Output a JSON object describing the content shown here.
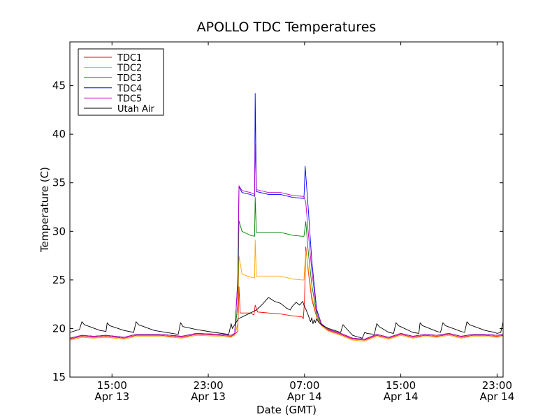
{
  "chart_data": {
    "type": "line",
    "title": "APOLLO TDC Temperatures",
    "xlabel": "Date (GMT)",
    "ylabel": "Temperature (C)",
    "ylim": [
      15,
      49.5
    ],
    "xlim": [
      11.5,
      47.5
    ],
    "x_unit": "hours since Apr 13 00:00 GMT",
    "yticks": [
      15,
      20,
      25,
      30,
      35,
      40,
      45
    ],
    "xticks": [
      {
        "hour": 15,
        "time": "15:00",
        "date": "Apr 13"
      },
      {
        "hour": 23,
        "time": "23:00",
        "date": "Apr 13"
      },
      {
        "hour": 31,
        "time": "07:00",
        "date": "Apr 14"
      },
      {
        "hour": 39,
        "time": "15:00",
        "date": "Apr 14"
      },
      {
        "hour": 47,
        "time": "23:00",
        "date": "Apr 14"
      }
    ],
    "legend": "upper-left",
    "series": [
      {
        "name": "TDC1",
        "color": "#ff0000",
        "points": [
          [
            11.5,
            18.9
          ],
          [
            12.5,
            19.2
          ],
          [
            13.5,
            19.1
          ],
          [
            14.5,
            19.2
          ],
          [
            16,
            19.0
          ],
          [
            17,
            19.3
          ],
          [
            19,
            19.3
          ],
          [
            20.8,
            19.1
          ],
          [
            22,
            19.4
          ],
          [
            24,
            19.3
          ],
          [
            24.9,
            19.2
          ],
          [
            25.2,
            19.4
          ],
          [
            25.45,
            19.7
          ],
          [
            25.55,
            24.3
          ],
          [
            25.65,
            21.6
          ],
          [
            26.5,
            21.6
          ],
          [
            26.8,
            21.4
          ],
          [
            26.9,
            22.4
          ],
          [
            27.1,
            21.7
          ],
          [
            28,
            21.6
          ],
          [
            29,
            21.5
          ],
          [
            30,
            21.3
          ],
          [
            30.8,
            21.2
          ],
          [
            30.9,
            21.0
          ],
          [
            31.0,
            22.9
          ],
          [
            31.1,
            28.4
          ],
          [
            31.3,
            26.0
          ],
          [
            31.6,
            23.0
          ],
          [
            32.0,
            21.2
          ],
          [
            32.4,
            20.3
          ],
          [
            33,
            19.8
          ],
          [
            34,
            19.4
          ],
          [
            35,
            18.9
          ],
          [
            36,
            18.8
          ],
          [
            37,
            19.3
          ],
          [
            38,
            19.0
          ],
          [
            39,
            19.4
          ],
          [
            40,
            19.1
          ],
          [
            41,
            19.3
          ],
          [
            42,
            19.2
          ],
          [
            43,
            19.4
          ],
          [
            44,
            19.1
          ],
          [
            45,
            19.3
          ],
          [
            46,
            19.3
          ],
          [
            47,
            19.2
          ],
          [
            47.5,
            19.3
          ]
        ]
      },
      {
        "name": "TDC2",
        "color": "#ffa500",
        "points": [
          [
            11.5,
            18.8
          ],
          [
            12.5,
            19.1
          ],
          [
            13.5,
            19.0
          ],
          [
            14.5,
            19.1
          ],
          [
            16,
            18.9
          ],
          [
            17,
            19.2
          ],
          [
            19,
            19.2
          ],
          [
            20.8,
            19.0
          ],
          [
            22,
            19.3
          ],
          [
            24,
            19.2
          ],
          [
            24.9,
            19.1
          ],
          [
            25.2,
            19.3
          ],
          [
            25.45,
            20.5
          ],
          [
            25.55,
            27.5
          ],
          [
            25.8,
            25.6
          ],
          [
            26.5,
            25.3
          ],
          [
            26.85,
            25.2
          ],
          [
            26.9,
            29.1
          ],
          [
            27.0,
            25.4
          ],
          [
            28,
            25.4
          ],
          [
            29,
            25.4
          ],
          [
            30,
            25.1
          ],
          [
            30.8,
            25.0
          ],
          [
            30.95,
            25.0
          ],
          [
            31.1,
            28.0
          ],
          [
            31.3,
            26.3
          ],
          [
            31.6,
            23.4
          ],
          [
            32.0,
            21.3
          ],
          [
            32.4,
            20.3
          ],
          [
            33,
            19.7
          ],
          [
            34,
            19.3
          ],
          [
            35,
            18.8
          ],
          [
            36,
            18.7
          ],
          [
            37,
            19.2
          ],
          [
            38,
            18.9
          ],
          [
            39,
            19.3
          ],
          [
            40,
            19.0
          ],
          [
            41,
            19.2
          ],
          [
            42,
            19.1
          ],
          [
            43,
            19.3
          ],
          [
            44,
            19.0
          ],
          [
            45,
            19.2
          ],
          [
            46,
            19.2
          ],
          [
            47,
            19.1
          ],
          [
            47.5,
            19.2
          ]
        ]
      },
      {
        "name": "TDC3",
        "color": "#008000",
        "points": [
          [
            11.5,
            19.0
          ],
          [
            12.5,
            19.3
          ],
          [
            13.5,
            19.2
          ],
          [
            14.5,
            19.3
          ],
          [
            16,
            19.1
          ],
          [
            17,
            19.4
          ],
          [
            19,
            19.4
          ],
          [
            20.8,
            19.2
          ],
          [
            22,
            19.5
          ],
          [
            24,
            19.4
          ],
          [
            24.9,
            19.3
          ],
          [
            25.2,
            19.5
          ],
          [
            25.45,
            22.5
          ],
          [
            25.55,
            31.1
          ],
          [
            25.8,
            30.0
          ],
          [
            26.5,
            29.6
          ],
          [
            26.85,
            29.5
          ],
          [
            26.9,
            33.5
          ],
          [
            27.0,
            29.9
          ],
          [
            28,
            29.9
          ],
          [
            29,
            29.9
          ],
          [
            30,
            29.6
          ],
          [
            30.8,
            29.5
          ],
          [
            30.95,
            29.5
          ],
          [
            31.1,
            31.0
          ],
          [
            31.3,
            28.0
          ],
          [
            31.6,
            24.5
          ],
          [
            32.0,
            21.5
          ],
          [
            32.4,
            20.4
          ],
          [
            33,
            19.9
          ],
          [
            34,
            19.5
          ],
          [
            35,
            19.0
          ],
          [
            36,
            18.9
          ],
          [
            37,
            19.4
          ],
          [
            38,
            19.1
          ],
          [
            39,
            19.5
          ],
          [
            40,
            19.2
          ],
          [
            41,
            19.4
          ],
          [
            42,
            19.3
          ],
          [
            43,
            19.5
          ],
          [
            44,
            19.2
          ],
          [
            45,
            19.4
          ],
          [
            46,
            19.4
          ],
          [
            47,
            19.3
          ],
          [
            47.5,
            19.4
          ]
        ]
      },
      {
        "name": "TDC4",
        "color": "#0000ff",
        "points": [
          [
            11.5,
            19.0
          ],
          [
            12.5,
            19.3
          ],
          [
            13.5,
            19.2
          ],
          [
            14.5,
            19.3
          ],
          [
            16,
            19.1
          ],
          [
            17,
            19.4
          ],
          [
            19,
            19.4
          ],
          [
            20.8,
            19.2
          ],
          [
            22,
            19.5
          ],
          [
            24,
            19.4
          ],
          [
            24.9,
            19.3
          ],
          [
            25.2,
            19.5
          ],
          [
            25.45,
            25.0
          ],
          [
            25.55,
            34.6
          ],
          [
            25.8,
            34.0
          ],
          [
            26.5,
            33.8
          ],
          [
            26.85,
            33.6
          ],
          [
            26.9,
            44.2
          ],
          [
            27.0,
            34.1
          ],
          [
            28,
            33.8
          ],
          [
            29,
            33.8
          ],
          [
            30,
            33.5
          ],
          [
            30.8,
            33.4
          ],
          [
            30.95,
            33.4
          ],
          [
            31.05,
            36.7
          ],
          [
            31.3,
            32.5
          ],
          [
            31.6,
            27.0
          ],
          [
            32.0,
            22.0
          ],
          [
            32.4,
            20.5
          ],
          [
            33,
            19.9
          ],
          [
            34,
            19.5
          ],
          [
            35,
            19.0
          ],
          [
            36,
            18.9
          ],
          [
            37,
            19.4
          ],
          [
            38,
            19.1
          ],
          [
            39,
            19.5
          ],
          [
            40,
            19.2
          ],
          [
            41,
            19.4
          ],
          [
            42,
            19.3
          ],
          [
            43,
            19.5
          ],
          [
            44,
            19.2
          ],
          [
            45,
            19.4
          ],
          [
            46,
            19.4
          ],
          [
            47,
            19.3
          ],
          [
            47.5,
            19.4
          ]
        ]
      },
      {
        "name": "TDC5",
        "color": "#bf00bf",
        "points": [
          [
            11.5,
            19.0
          ],
          [
            12.5,
            19.3
          ],
          [
            13.5,
            19.2
          ],
          [
            14.5,
            19.3
          ],
          [
            16,
            19.1
          ],
          [
            17,
            19.4
          ],
          [
            19,
            19.4
          ],
          [
            20.8,
            19.2
          ],
          [
            22,
            19.5
          ],
          [
            24,
            19.4
          ],
          [
            24.9,
            19.3
          ],
          [
            25.2,
            19.5
          ],
          [
            25.45,
            25.0
          ],
          [
            25.55,
            34.7
          ],
          [
            25.8,
            34.2
          ],
          [
            26.5,
            34.0
          ],
          [
            26.85,
            33.8
          ],
          [
            26.9,
            39.0
          ],
          [
            27.0,
            34.3
          ],
          [
            28,
            34.0
          ],
          [
            29,
            34.0
          ],
          [
            30,
            33.7
          ],
          [
            30.8,
            33.6
          ],
          [
            30.95,
            33.6
          ],
          [
            31.1,
            33.0
          ],
          [
            31.3,
            30.0
          ],
          [
            31.6,
            26.0
          ],
          [
            32.0,
            21.8
          ],
          [
            32.4,
            20.5
          ],
          [
            33,
            19.9
          ],
          [
            34,
            19.5
          ],
          [
            35,
            19.0
          ],
          [
            36,
            18.9
          ],
          [
            37,
            19.4
          ],
          [
            38,
            19.1
          ],
          [
            39,
            19.5
          ],
          [
            40,
            19.2
          ],
          [
            41,
            19.4
          ],
          [
            42,
            19.3
          ],
          [
            43,
            19.5
          ],
          [
            44,
            19.2
          ],
          [
            45,
            19.4
          ],
          [
            46,
            19.4
          ],
          [
            47,
            19.3
          ],
          [
            47.5,
            19.4
          ]
        ]
      },
      {
        "name": "Utah Air",
        "color": "#000000",
        "points": [
          [
            11.5,
            19.6
          ],
          [
            12.3,
            19.9
          ],
          [
            12.5,
            20.7
          ],
          [
            12.7,
            20.4
          ],
          [
            14.0,
            19.8
          ],
          [
            14.5,
            19.7
          ],
          [
            14.6,
            20.6
          ],
          [
            14.8,
            20.3
          ],
          [
            16.0,
            19.8
          ],
          [
            16.8,
            19.6
          ],
          [
            17.0,
            20.7
          ],
          [
            17.2,
            20.4
          ],
          [
            18.5,
            19.8
          ],
          [
            20.0,
            19.5
          ],
          [
            20.5,
            19.4
          ],
          [
            20.7,
            20.6
          ],
          [
            20.9,
            20.2
          ],
          [
            22.0,
            19.9
          ],
          [
            23.5,
            19.6
          ],
          [
            24.7,
            19.4
          ],
          [
            24.9,
            20.5
          ],
          [
            25.0,
            20.0
          ],
          [
            25.3,
            20.6
          ],
          [
            25.5,
            21.0
          ],
          [
            26.0,
            21.3
          ],
          [
            26.5,
            21.6
          ],
          [
            27.0,
            21.9
          ],
          [
            27.5,
            22.5
          ],
          [
            28.0,
            23.2
          ],
          [
            28.5,
            22.8
          ],
          [
            29.0,
            22.6
          ],
          [
            29.5,
            22.1
          ],
          [
            29.8,
            21.9
          ],
          [
            30.0,
            22.3
          ],
          [
            30.3,
            22.7
          ],
          [
            30.6,
            22.4
          ],
          [
            30.85,
            22.8
          ],
          [
            30.95,
            22.4
          ],
          [
            31.1,
            22.0
          ],
          [
            31.3,
            21.4
          ],
          [
            31.5,
            20.7
          ],
          [
            31.6,
            21.1
          ],
          [
            31.7,
            20.5
          ],
          [
            31.8,
            20.9
          ],
          [
            31.9,
            20.6
          ],
          [
            32.0,
            21.0
          ],
          [
            32.2,
            20.6
          ],
          [
            32.5,
            20.3
          ],
          [
            33.0,
            20.0
          ],
          [
            33.5,
            19.8
          ],
          [
            34.0,
            19.6
          ],
          [
            34.2,
            20.4
          ],
          [
            34.4,
            20.1
          ],
          [
            35.0,
            19.3
          ],
          [
            35.8,
            19.0
          ],
          [
            36.0,
            19.6
          ],
          [
            36.2,
            19.5
          ],
          [
            36.8,
            19.4
          ],
          [
            37.0,
            20.5
          ],
          [
            37.2,
            20.2
          ],
          [
            38.0,
            19.6
          ],
          [
            38.4,
            19.5
          ],
          [
            38.6,
            20.6
          ],
          [
            38.8,
            20.3
          ],
          [
            40.0,
            19.6
          ],
          [
            40.5,
            19.5
          ],
          [
            40.6,
            20.6
          ],
          [
            40.8,
            20.3
          ],
          [
            42.0,
            19.7
          ],
          [
            42.3,
            19.6
          ],
          [
            42.5,
            20.6
          ],
          [
            42.7,
            20.3
          ],
          [
            44.0,
            19.7
          ],
          [
            44.3,
            19.6
          ],
          [
            44.5,
            20.7
          ],
          [
            44.7,
            20.4
          ],
          [
            46.0,
            19.8
          ],
          [
            46.8,
            19.6
          ],
          [
            47.0,
            19.5
          ],
          [
            47.3,
            19.6
          ],
          [
            47.5,
            20.7
          ]
        ]
      }
    ]
  }
}
